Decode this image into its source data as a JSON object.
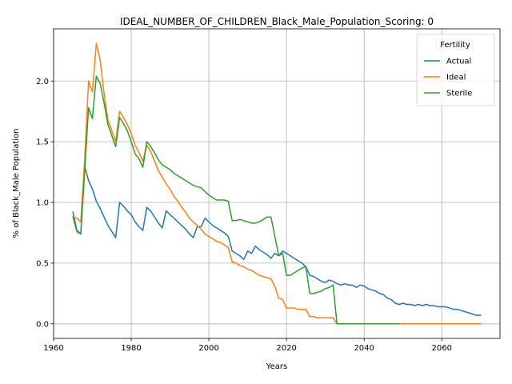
{
  "chart_data": {
    "type": "line",
    "title": "IDEAL_NUMBER_OF_CHILDREN_Black_Male_Population_Scoring: 0",
    "xlabel": "Years",
    "ylabel": "% of Black_Male Population",
    "xlim": [
      1960,
      2075
    ],
    "ylim": [
      -0.12,
      2.43
    ],
    "xticks": [
      1960,
      1980,
      2000,
      2020,
      2040,
      2060
    ],
    "xtick_labels": [
      "1960",
      "1980",
      "2000",
      "2020",
      "2040",
      "2060"
    ],
    "yticks": [
      0.0,
      0.5,
      1.0,
      1.5,
      2.0
    ],
    "ytick_labels": [
      "0.0",
      "0.5",
      "1.0",
      "1.5",
      "2.0"
    ],
    "grid": true,
    "legend": {
      "title": "Fertility",
      "placement": "top-right"
    },
    "series": [
      {
        "name": "Actual",
        "color": "#1f77b4",
        "points": [
          [
            1965,
            0.92
          ],
          [
            1966,
            0.77
          ],
          [
            1967,
            0.74
          ],
          [
            1968,
            1.3
          ],
          [
            1969,
            1.18
          ],
          [
            1970,
            1.11
          ],
          [
            1971,
            1.01
          ],
          [
            1972,
            0.95
          ],
          [
            1973,
            0.88
          ],
          [
            1974,
            0.81
          ],
          [
            1975,
            0.76
          ],
          [
            1976,
            0.71
          ],
          [
            1977,
            1.0
          ],
          [
            1978,
            0.97
          ],
          [
            1979,
            0.93
          ],
          [
            1980,
            0.9
          ],
          [
            1981,
            0.84
          ],
          [
            1982,
            0.8
          ],
          [
            1983,
            0.77
          ],
          [
            1984,
            0.96
          ],
          [
            1985,
            0.93
          ],
          [
            1986,
            0.88
          ],
          [
            1987,
            0.83
          ],
          [
            1988,
            0.79
          ],
          [
            1989,
            0.93
          ],
          [
            1990,
            0.9
          ],
          [
            1991,
            0.87
          ],
          [
            1992,
            0.84
          ],
          [
            1993,
            0.81
          ],
          [
            1994,
            0.78
          ],
          [
            1995,
            0.74
          ],
          [
            1996,
            0.71
          ],
          [
            1997,
            0.8
          ],
          [
            1998,
            0.8
          ],
          [
            1999,
            0.87
          ],
          [
            2000,
            0.84
          ],
          [
            2001,
            0.81
          ],
          [
            2002,
            0.79
          ],
          [
            2003,
            0.77
          ],
          [
            2004,
            0.75
          ],
          [
            2005,
            0.72
          ],
          [
            2006,
            0.6
          ],
          [
            2007,
            0.58
          ],
          [
            2008,
            0.56
          ],
          [
            2009,
            0.53
          ],
          [
            2010,
            0.6
          ],
          [
            2011,
            0.58
          ],
          [
            2012,
            0.64
          ],
          [
            2013,
            0.61
          ],
          [
            2014,
            0.59
          ],
          [
            2015,
            0.57
          ],
          [
            2016,
            0.54
          ],
          [
            2017,
            0.58
          ],
          [
            2018,
            0.56
          ],
          [
            2019,
            0.6
          ],
          [
            2020,
            0.58
          ],
          [
            2021,
            0.56
          ],
          [
            2022,
            0.54
          ],
          [
            2023,
            0.52
          ],
          [
            2024,
            0.5
          ],
          [
            2025,
            0.47
          ],
          [
            2026,
            0.4
          ],
          [
            2027,
            0.39
          ],
          [
            2028,
            0.37
          ],
          [
            2029,
            0.35
          ],
          [
            2030,
            0.34
          ],
          [
            2031,
            0.36
          ],
          [
            2032,
            0.35
          ],
          [
            2033,
            0.33
          ],
          [
            2034,
            0.32
          ],
          [
            2035,
            0.33
          ],
          [
            2036,
            0.32
          ],
          [
            2037,
            0.32
          ],
          [
            2038,
            0.3
          ],
          [
            2039,
            0.32
          ],
          [
            2040,
            0.31
          ],
          [
            2041,
            0.29
          ],
          [
            2042,
            0.28
          ],
          [
            2043,
            0.27
          ],
          [
            2044,
            0.25
          ],
          [
            2045,
            0.24
          ],
          [
            2046,
            0.21
          ],
          [
            2047,
            0.2
          ],
          [
            2048,
            0.17
          ],
          [
            2049,
            0.16
          ],
          [
            2050,
            0.17
          ],
          [
            2051,
            0.16
          ],
          [
            2052,
            0.16
          ],
          [
            2053,
            0.15
          ],
          [
            2054,
            0.16
          ],
          [
            2055,
            0.15
          ],
          [
            2056,
            0.16
          ],
          [
            2057,
            0.15
          ],
          [
            2058,
            0.15
          ],
          [
            2059,
            0.14
          ],
          [
            2060,
            0.14
          ],
          [
            2061,
            0.14
          ],
          [
            2062,
            0.13
          ],
          [
            2063,
            0.12
          ],
          [
            2064,
            0.12
          ],
          [
            2065,
            0.11
          ],
          [
            2066,
            0.1
          ],
          [
            2067,
            0.09
          ],
          [
            2068,
            0.08
          ],
          [
            2069,
            0.07
          ],
          [
            2070,
            0.07
          ]
        ]
      },
      {
        "name": "Ideal",
        "color": "#ff7f0e",
        "points": [
          [
            1965,
            0.88
          ],
          [
            1966,
            0.87
          ],
          [
            1967,
            0.84
          ],
          [
            1968,
            1.35
          ],
          [
            1969,
            2.0
          ],
          [
            1970,
            1.91
          ],
          [
            1971,
            2.31
          ],
          [
            1972,
            2.17
          ],
          [
            1973,
            1.9
          ],
          [
            1974,
            1.68
          ],
          [
            1975,
            1.59
          ],
          [
            1976,
            1.5
          ],
          [
            1977,
            1.75
          ],
          [
            1978,
            1.7
          ],
          [
            1979,
            1.64
          ],
          [
            1980,
            1.57
          ],
          [
            1981,
            1.47
          ],
          [
            1982,
            1.41
          ],
          [
            1983,
            1.34
          ],
          [
            1984,
            1.47
          ],
          [
            1985,
            1.42
          ],
          [
            1986,
            1.34
          ],
          [
            1987,
            1.26
          ],
          [
            1988,
            1.21
          ],
          [
            1989,
            1.15
          ],
          [
            1990,
            1.11
          ],
          [
            1991,
            1.05
          ],
          [
            1992,
            1.01
          ],
          [
            1993,
            0.96
          ],
          [
            1994,
            0.92
          ],
          [
            1995,
            0.87
          ],
          [
            1996,
            0.84
          ],
          [
            1997,
            0.81
          ],
          [
            1998,
            0.78
          ],
          [
            1999,
            0.74
          ],
          [
            2000,
            0.72
          ],
          [
            2001,
            0.7
          ],
          [
            2002,
            0.68
          ],
          [
            2003,
            0.67
          ],
          [
            2004,
            0.65
          ],
          [
            2005,
            0.63
          ],
          [
            2006,
            0.51
          ],
          [
            2007,
            0.5
          ],
          [
            2008,
            0.48
          ],
          [
            2009,
            0.47
          ],
          [
            2010,
            0.45
          ],
          [
            2011,
            0.44
          ],
          [
            2012,
            0.42
          ],
          [
            2013,
            0.4
          ],
          [
            2014,
            0.39
          ],
          [
            2015,
            0.38
          ],
          [
            2016,
            0.37
          ],
          [
            2017,
            0.31
          ],
          [
            2018,
            0.21
          ],
          [
            2019,
            0.2
          ],
          [
            2020,
            0.13
          ],
          [
            2021,
            0.13
          ],
          [
            2022,
            0.13
          ],
          [
            2023,
            0.12
          ],
          [
            2024,
            0.12
          ],
          [
            2025,
            0.12
          ],
          [
            2026,
            0.06
          ],
          [
            2027,
            0.06
          ],
          [
            2028,
            0.05
          ],
          [
            2029,
            0.05
          ],
          [
            2030,
            0.05
          ],
          [
            2031,
            0.05
          ],
          [
            2032,
            0.05
          ],
          [
            2033,
            0.0
          ],
          [
            2034,
            0.0
          ],
          [
            2040,
            0.0
          ],
          [
            2050,
            0.0
          ],
          [
            2060,
            0.0
          ],
          [
            2070,
            0.0
          ]
        ]
      },
      {
        "name": "Sterile",
        "color": "#2ca02c",
        "points": [
          [
            1965,
            0.88
          ],
          [
            1966,
            0.76
          ],
          [
            1967,
            0.74
          ],
          [
            1968,
            1.25
          ],
          [
            1969,
            1.78
          ],
          [
            1970,
            1.69
          ],
          [
            1971,
            2.04
          ],
          [
            1972,
            1.98
          ],
          [
            1973,
            1.82
          ],
          [
            1974,
            1.64
          ],
          [
            1975,
            1.55
          ],
          [
            1976,
            1.46
          ],
          [
            1977,
            1.7
          ],
          [
            1978,
            1.65
          ],
          [
            1979,
            1.59
          ],
          [
            1980,
            1.5
          ],
          [
            1981,
            1.4
          ],
          [
            1982,
            1.36
          ],
          [
            1983,
            1.29
          ],
          [
            1984,
            1.5
          ],
          [
            1985,
            1.46
          ],
          [
            1986,
            1.41
          ],
          [
            1987,
            1.35
          ],
          [
            1988,
            1.31
          ],
          [
            1989,
            1.29
          ],
          [
            1990,
            1.27
          ],
          [
            1991,
            1.24
          ],
          [
            1992,
            1.22
          ],
          [
            1993,
            1.2
          ],
          [
            1994,
            1.18
          ],
          [
            1995,
            1.16
          ],
          [
            1996,
            1.14
          ],
          [
            1997,
            1.13
          ],
          [
            1998,
            1.12
          ],
          [
            1999,
            1.09
          ],
          [
            2000,
            1.06
          ],
          [
            2001,
            1.04
          ],
          [
            2002,
            1.02
          ],
          [
            2003,
            1.02
          ],
          [
            2004,
            1.02
          ],
          [
            2005,
            1.01
          ],
          [
            2006,
            0.85
          ],
          [
            2007,
            0.85
          ],
          [
            2008,
            0.86
          ],
          [
            2009,
            0.85
          ],
          [
            2010,
            0.84
          ],
          [
            2011,
            0.83
          ],
          [
            2012,
            0.83
          ],
          [
            2013,
            0.84
          ],
          [
            2014,
            0.86
          ],
          [
            2015,
            0.88
          ],
          [
            2016,
            0.88
          ],
          [
            2017,
            0.72
          ],
          [
            2018,
            0.56
          ],
          [
            2019,
            0.58
          ],
          [
            2020,
            0.4
          ],
          [
            2021,
            0.4
          ],
          [
            2022,
            0.42
          ],
          [
            2023,
            0.44
          ],
          [
            2024,
            0.46
          ],
          [
            2025,
            0.47
          ],
          [
            2026,
            0.25
          ],
          [
            2027,
            0.25
          ],
          [
            2028,
            0.26
          ],
          [
            2029,
            0.27
          ],
          [
            2030,
            0.29
          ],
          [
            2031,
            0.3
          ],
          [
            2032,
            0.32
          ],
          [
            2033,
            0.0
          ],
          [
            2034,
            0.0
          ],
          [
            2040,
            0.0
          ],
          [
            2045,
            0.0
          ],
          [
            2049,
            0.0
          ]
        ]
      }
    ]
  }
}
